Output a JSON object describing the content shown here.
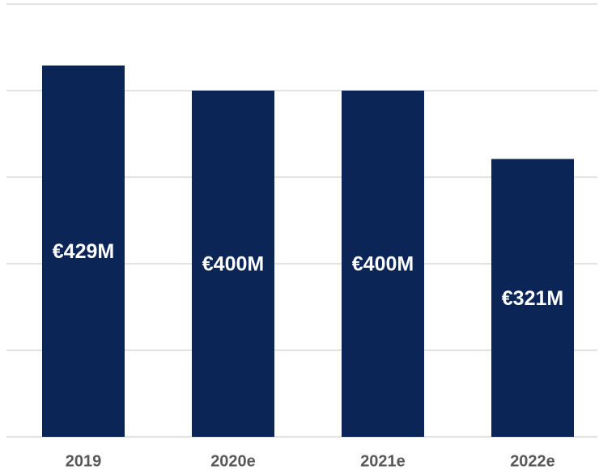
{
  "chart_data": {
    "type": "bar",
    "categories": [
      "2019",
      "2020e",
      "2021e",
      "2022e"
    ],
    "values": [
      429,
      400,
      400,
      321
    ],
    "value_labels": [
      "€429M",
      "€400M",
      "€400M",
      "€321M"
    ],
    "color": "#0c2557",
    "ylim": [
      0,
      500
    ],
    "yticks": [
      0,
      100,
      200,
      300,
      400,
      500
    ],
    "grid": true
  }
}
